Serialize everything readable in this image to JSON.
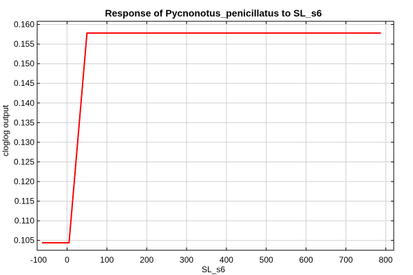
{
  "chart_data": {
    "type": "line",
    "title": "Response of Pycnonotus_penicillatus to SL_s6",
    "xlabel": "SL_s6",
    "ylabel": "cloglog output",
    "xlim": [
      -75,
      820
    ],
    "ylim": [
      0.1025,
      0.1608
    ],
    "x_ticks": [
      -100,
      0,
      100,
      200,
      300,
      400,
      500,
      600,
      700,
      800
    ],
    "x_tick_labels": [
      "-100",
      "0",
      "100",
      "200",
      "300",
      "400",
      "500",
      "600",
      "700",
      "800"
    ],
    "y_ticks": [
      0.105,
      0.11,
      0.115,
      0.12,
      0.125,
      0.13,
      0.135,
      0.14,
      0.145,
      0.15,
      0.155,
      0.16
    ],
    "y_tick_labels": [
      "0.105",
      "0.110",
      "0.115",
      "0.120",
      "0.125",
      "0.130",
      "0.135",
      "0.140",
      "0.145",
      "0.150",
      "0.155",
      "0.160"
    ],
    "grid": true,
    "series": [
      {
        "color": "#ff0000",
        "x": [
          -63,
          5,
          50,
          788
        ],
        "y": [
          0.1044,
          0.1044,
          0.1578,
          0.1578
        ]
      }
    ]
  }
}
